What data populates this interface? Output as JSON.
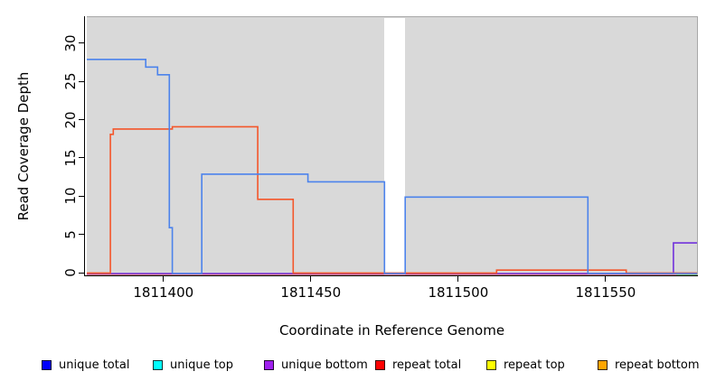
{
  "chart_data": {
    "type": "line",
    "title": "",
    "xlabel": "Coordinate in Reference Genome",
    "ylabel": "Read Coverage Depth",
    "xlim": [
      1811374,
      1811581
    ],
    "ylim": [
      0,
      33
    ],
    "x_ticks": [
      1811400,
      1811450,
      1811500,
      1811550
    ],
    "y_ticks": [
      0,
      5,
      10,
      15,
      20,
      25,
      30
    ],
    "grid": false,
    "panel_background": "#d9d9d9",
    "panel_border_color": "#a8a8a8",
    "masked_region": {
      "x_start": 1811475,
      "x_end": 1811482
    },
    "legend_position": "bottom",
    "series": [
      {
        "name": "unique total",
        "legend_color": "#0000ff",
        "line_color": "#4c83ec",
        "points": [
          [
            1811374,
            28
          ],
          [
            1811394,
            28
          ],
          [
            1811394,
            27
          ],
          [
            1811398,
            27
          ],
          [
            1811398,
            26
          ],
          [
            1811402,
            26
          ],
          [
            1811402,
            6
          ],
          [
            1811403,
            6
          ],
          [
            1811403,
            0
          ],
          [
            1811413,
            0
          ],
          [
            1811413,
            13
          ],
          [
            1811449,
            13
          ],
          [
            1811449,
            12
          ],
          [
            1811475,
            12
          ],
          [
            1811475,
            0
          ],
          [
            1811482,
            0
          ],
          [
            1811482,
            10
          ],
          [
            1811544,
            10
          ],
          [
            1811544,
            0
          ],
          [
            1811581,
            0
          ]
        ]
      },
      {
        "name": "unique top",
        "legend_color": "#00ffff",
        "line_color": "#85c785",
        "points": [
          [
            1811574,
            -0.2
          ],
          [
            1811581,
            -0.2
          ]
        ]
      },
      {
        "name": "unique bottom",
        "legend_color": "#a020f0",
        "line_color": "#7232dc",
        "points": [
          [
            1811374,
            0
          ],
          [
            1811573,
            0
          ],
          [
            1811573,
            4
          ],
          [
            1811581,
            4
          ]
        ]
      },
      {
        "name": "repeat total",
        "legend_color": "#ff0000",
        "line_color": "#e0606c",
        "points": [
          [
            1811374,
            -0.1
          ],
          [
            1811581,
            -0.1
          ]
        ]
      },
      {
        "name": "repeat top",
        "legend_color": "#ffff00",
        "line_color": "#ffff00",
        "points": []
      },
      {
        "name": "repeat bottom",
        "legend_color": "#ffa500",
        "line_color": "#f4562a",
        "points": [
          [
            1811374,
            0.07
          ],
          [
            1811382,
            0.07
          ],
          [
            1811382,
            18.2
          ],
          [
            1811383,
            18.2
          ],
          [
            1811383,
            18.9
          ],
          [
            1811403,
            18.9
          ],
          [
            1811403,
            19.2
          ],
          [
            1811432,
            19.2
          ],
          [
            1811432,
            9.7
          ],
          [
            1811444,
            9.7
          ],
          [
            1811444,
            0.07
          ],
          [
            1811513,
            0.07
          ],
          [
            1811513,
            0.45
          ],
          [
            1811557,
            0.45
          ],
          [
            1811557,
            0.07
          ],
          [
            1811581,
            0.07
          ]
        ]
      }
    ]
  }
}
